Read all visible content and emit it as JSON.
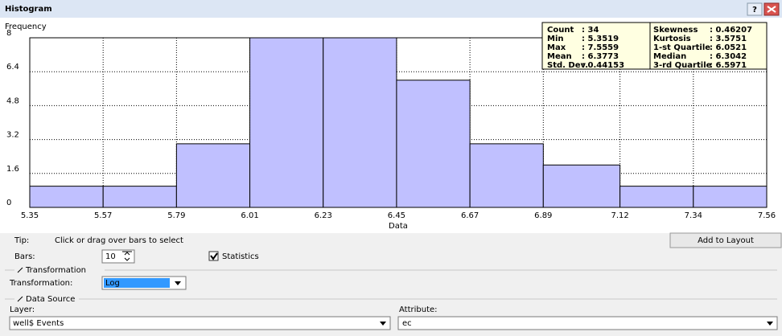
{
  "window": {
    "title": "Histogram",
    "help": "?"
  },
  "chart_data": {
    "type": "histogram",
    "y_label": "Frequency",
    "x_label": "Data",
    "bins": [
      5.35,
      5.57,
      5.79,
      6.01,
      6.23,
      6.45,
      6.67,
      6.89,
      7.12,
      7.34,
      7.56
    ],
    "counts": [
      1,
      1,
      3,
      8,
      8,
      6,
      3,
      2,
      1,
      1
    ],
    "color": "#c0c0ff",
    "xlim": [
      5.35,
      7.56
    ],
    "xticks": [
      5.35,
      5.57,
      5.79,
      6.01,
      6.23,
      6.45,
      6.67,
      6.89,
      7.12,
      7.34,
      7.56
    ],
    "ylim": [
      0,
      8
    ],
    "yticks": [
      0,
      1.6,
      3.2,
      4.8,
      6.4,
      8
    ],
    "grid": true
  },
  "statistics": [
    [
      "Count",
      ": 34",
      "Skewness",
      ": 0.46207"
    ],
    [
      "Min",
      ": 5.3519",
      "Kurtosis",
      ": 3.5751"
    ],
    [
      "Max",
      ": 7.5559",
      "1-st Quartile",
      ": 6.0521"
    ],
    [
      "Mean",
      ": 6.3773",
      "Median",
      ": 6.3042"
    ],
    [
      "Std. Dev.",
      ": 0.44153",
      "3-rd Quartile",
      ": 6.5971"
    ]
  ],
  "controls": {
    "tip_label": "Tip:",
    "tip": "Click or drag over bars to select",
    "add_button": "Add to Layout",
    "bars_label": "Bars:",
    "bars_value": 10,
    "statistics_checkbox": "Statistics",
    "transformation_group": "Transformation",
    "transformation_label": "Transformation:",
    "transformation_value": "Log",
    "data_source_group": "Data Source",
    "layer_label": "Layer:",
    "layer_value": "well$ Events",
    "attribute_label": "Attribute:",
    "attribute_value": "ec"
  }
}
